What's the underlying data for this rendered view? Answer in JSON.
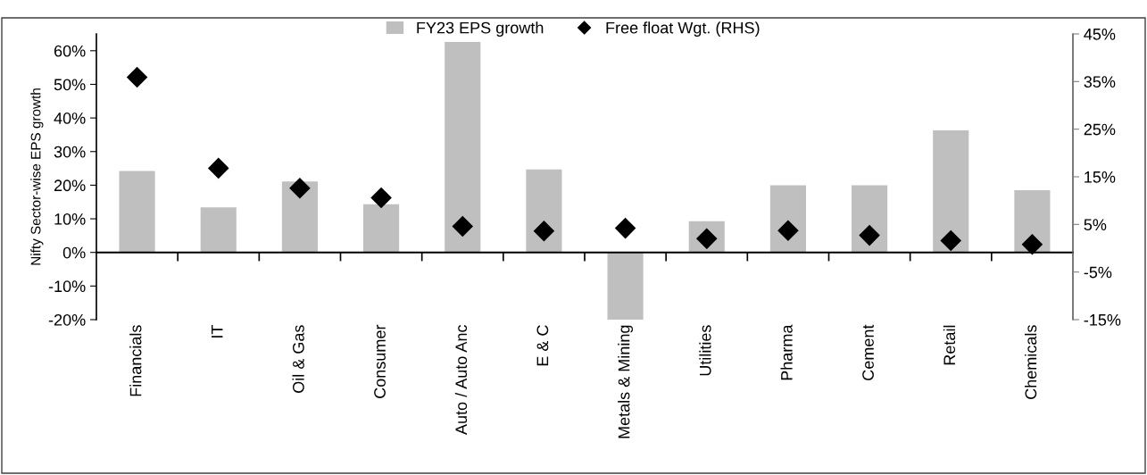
{
  "chart_data": {
    "type": "bar",
    "categories": [
      "Financials",
      "IT",
      "Oil & Gas",
      "Consumer",
      "Auto / Auto Anc",
      "E & C",
      "Metals & Mining",
      "Utilities",
      "Pharma",
      "Cement",
      "Retail",
      "Chemicals"
    ],
    "ylabel": "Nifty Sector-wise EPS growth",
    "series": [
      {
        "name": "FY23 EPS growth",
        "type": "bar",
        "color": "#bfbfbf",
        "values": [
          24.2,
          13.4,
          21.1,
          14.3,
          62.6,
          24.7,
          -20,
          9.3,
          20,
          20,
          36.3,
          18.5
        ]
      },
      {
        "name": "Free float Wgt. (RHS)",
        "type": "scatter",
        "axis": "y2",
        "marker": "diamond",
        "color": "#000000",
        "values": [
          35.9,
          16.8,
          12.6,
          10.6,
          4.6,
          3.6,
          4.2,
          2.0,
          3.7,
          2.7,
          1.6,
          0.8
        ]
      }
    ],
    "ylim": [
      -20,
      65
    ],
    "yticks": [
      {
        "value": -20,
        "label": "-20%"
      },
      {
        "value": -10,
        "label": "-10%"
      },
      {
        "value": 0,
        "label": "0%"
      },
      {
        "value": 10,
        "label": "10%"
      },
      {
        "value": 20,
        "label": "20%"
      },
      {
        "value": 30,
        "label": "30%"
      },
      {
        "value": 40,
        "label": "40%"
      },
      {
        "value": 50,
        "label": "50%"
      },
      {
        "value": 60,
        "label": "60%"
      }
    ],
    "y2lim": [
      -15,
      45
    ],
    "y2ticks": [
      {
        "value": -15,
        "label": "-15%"
      },
      {
        "value": -5,
        "label": "-5%"
      },
      {
        "value": 5,
        "label": "5%"
      },
      {
        "value": 15,
        "label": "15%"
      },
      {
        "value": 25,
        "label": "25%"
      },
      {
        "value": 35,
        "label": "35%"
      },
      {
        "value": 45,
        "label": "45%"
      }
    ],
    "legend": "top"
  }
}
